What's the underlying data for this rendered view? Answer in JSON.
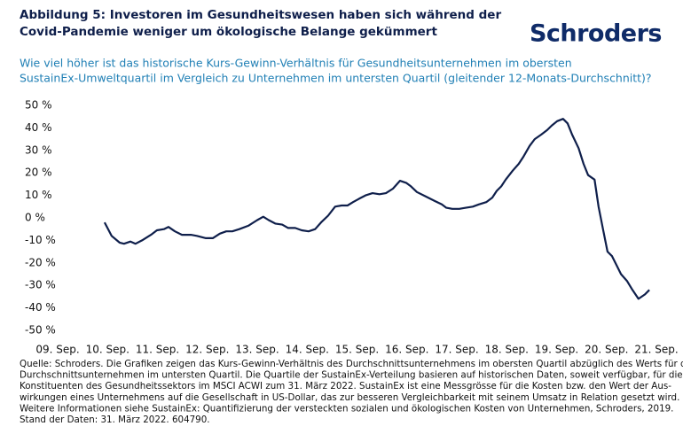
{
  "chart_data": {
    "type": "line",
    "title": [
      "Abbildung 5: Investoren im Gesundheitswesen haben sich während der",
      "Covid-Pandemie weniger um ökologische Belange gekümmert"
    ],
    "logo": "Schroders",
    "subtitle": [
      "Wie viel höher ist das historische Kurs-Gewinn-Verhältnis für Gesundheitsunternehmen im obersten",
      "SustainEx-Umweltquartil im Vergleich zu Unternehmen im untersten Quartil (gleitender 12-Monats-Durchschnitt)?"
    ],
    "note": [
      "Quelle: Schroders. Die Grafiken zeigen das Kurs-Gewinn-Verhältnis des Durchschnittsunternehmens im obersten Quartil abzüglich des Werts für das",
      "Durchschnittsunternehmen im untersten Quartil. Die Quartile der SustainEx-Verteilung basieren auf historischen Daten, soweit verfügbar, für die",
      "Konstituenten des Gesundheitssektors im MSCI ACWI zum 31. März 2022. SustainEx ist eine Messgrösse für die Kosten bzw. den Wert der Aus-",
      "wirkungen eines Unternehmens auf die Gesellschaft in US-Dollar, das zur besseren Vergleichbarkeit mit seinem Umsatz in Relation gesetzt wird.",
      "Weitere Informationen siehe SustainEx: Quantifizierung der versteckten sozialen und ökologischen Kosten von Unternehmen, Schroders, 2019.",
      "Stand der Daten: 31. März 2022. 604790."
    ],
    "color": "#0f1f4b",
    "x": [
      9.94,
      10.08,
      10.24,
      10.33,
      10.46,
      10.56,
      10.69,
      10.87,
      10.99,
      11.13,
      11.22,
      11.35,
      11.49,
      11.67,
      11.79,
      11.97,
      12.11,
      12.25,
      12.38,
      12.5,
      12.64,
      12.82,
      13.0,
      13.12,
      13.23,
      13.36,
      13.5,
      13.62,
      13.76,
      13.89,
      14.03,
      14.16,
      14.28,
      14.42,
      14.56,
      14.69,
      14.81,
      14.92,
      15.04,
      15.17,
      15.31,
      15.45,
      15.58,
      15.72,
      15.86,
      15.99,
      16.08,
      16.2,
      16.38,
      16.56,
      16.7,
      16.79,
      16.91,
      17.05,
      17.18,
      17.32,
      17.44,
      17.59,
      17.71,
      17.8,
      17.89,
      17.98,
      18.12,
      18.24,
      18.33,
      18.46,
      18.56,
      18.69,
      18.81,
      18.9,
      19.01,
      19.13,
      19.22,
      19.31,
      19.44,
      19.54,
      19.63,
      19.76,
      19.84,
      19.93,
      20.02,
      20.11,
      20.2,
      20.29,
      20.41,
      20.52,
      20.64,
      20.77,
      20.86
    ],
    "values": [
      -2,
      -8,
      -11,
      -11.5,
      -10.5,
      -11.5,
      -10,
      -7.5,
      -5.5,
      -5,
      -4,
      -6,
      -7.5,
      -7.5,
      -8,
      -9,
      -9,
      -7,
      -6,
      -6,
      -5,
      -3.5,
      -1,
      0.5,
      -1,
      -2.5,
      -3,
      -4.5,
      -4.5,
      -5.5,
      -6,
      -5,
      -2,
      1,
      5,
      5.5,
      5.5,
      7,
      8.5,
      10,
      11,
      10.5,
      11,
      13,
      16.5,
      15.5,
      14,
      11.5,
      9.5,
      7.5,
      6,
      4.5,
      4,
      4,
      4.5,
      5,
      6,
      7,
      9,
      12,
      14,
      17,
      21,
      24,
      27,
      32,
      35,
      37,
      39,
      41,
      43,
      44,
      42,
      37,
      31,
      24,
      19,
      17,
      5,
      -5,
      -15,
      -17,
      -21,
      -25,
      -28,
      -32,
      -36,
      -34,
      -32
    ],
    "xlim": [
      8.6,
      21.3
    ],
    "xticks": [
      {
        "value": 9,
        "label": "09. Sep."
      },
      {
        "value": 10,
        "label": "10. Sep."
      },
      {
        "value": 11,
        "label": "11. Sep."
      },
      {
        "value": 12,
        "label": "12. Sep."
      },
      {
        "value": 13,
        "label": "13. Sep."
      },
      {
        "value": 14,
        "label": "14. Sep."
      },
      {
        "value": 15,
        "label": "15. Sep."
      },
      {
        "value": 16,
        "label": "16. Sep."
      },
      {
        "value": 17,
        "label": "17. Sep."
      },
      {
        "value": 18,
        "label": "18. Sep."
      },
      {
        "value": 19,
        "label": "19. Sep."
      },
      {
        "value": 20,
        "label": "20. Sep."
      },
      {
        "value": 21,
        "label": "21. Sep."
      }
    ],
    "ylim": [
      -50,
      50
    ],
    "yticks": [
      {
        "value": 50,
        "label": "50 %"
      },
      {
        "value": 40,
        "label": "40 %"
      },
      {
        "value": 30,
        "label": "30 %"
      },
      {
        "value": 20,
        "label": "20 %"
      },
      {
        "value": 10,
        "label": "10 %"
      },
      {
        "value": 0,
        "label": "0 %"
      },
      {
        "value": -10,
        "label": "-10 %"
      },
      {
        "value": -20,
        "label": "-20 %"
      },
      {
        "value": -30,
        "label": "-30 %"
      },
      {
        "value": -40,
        "label": "-40 %"
      },
      {
        "value": -50,
        "label": "-50 %"
      }
    ]
  }
}
